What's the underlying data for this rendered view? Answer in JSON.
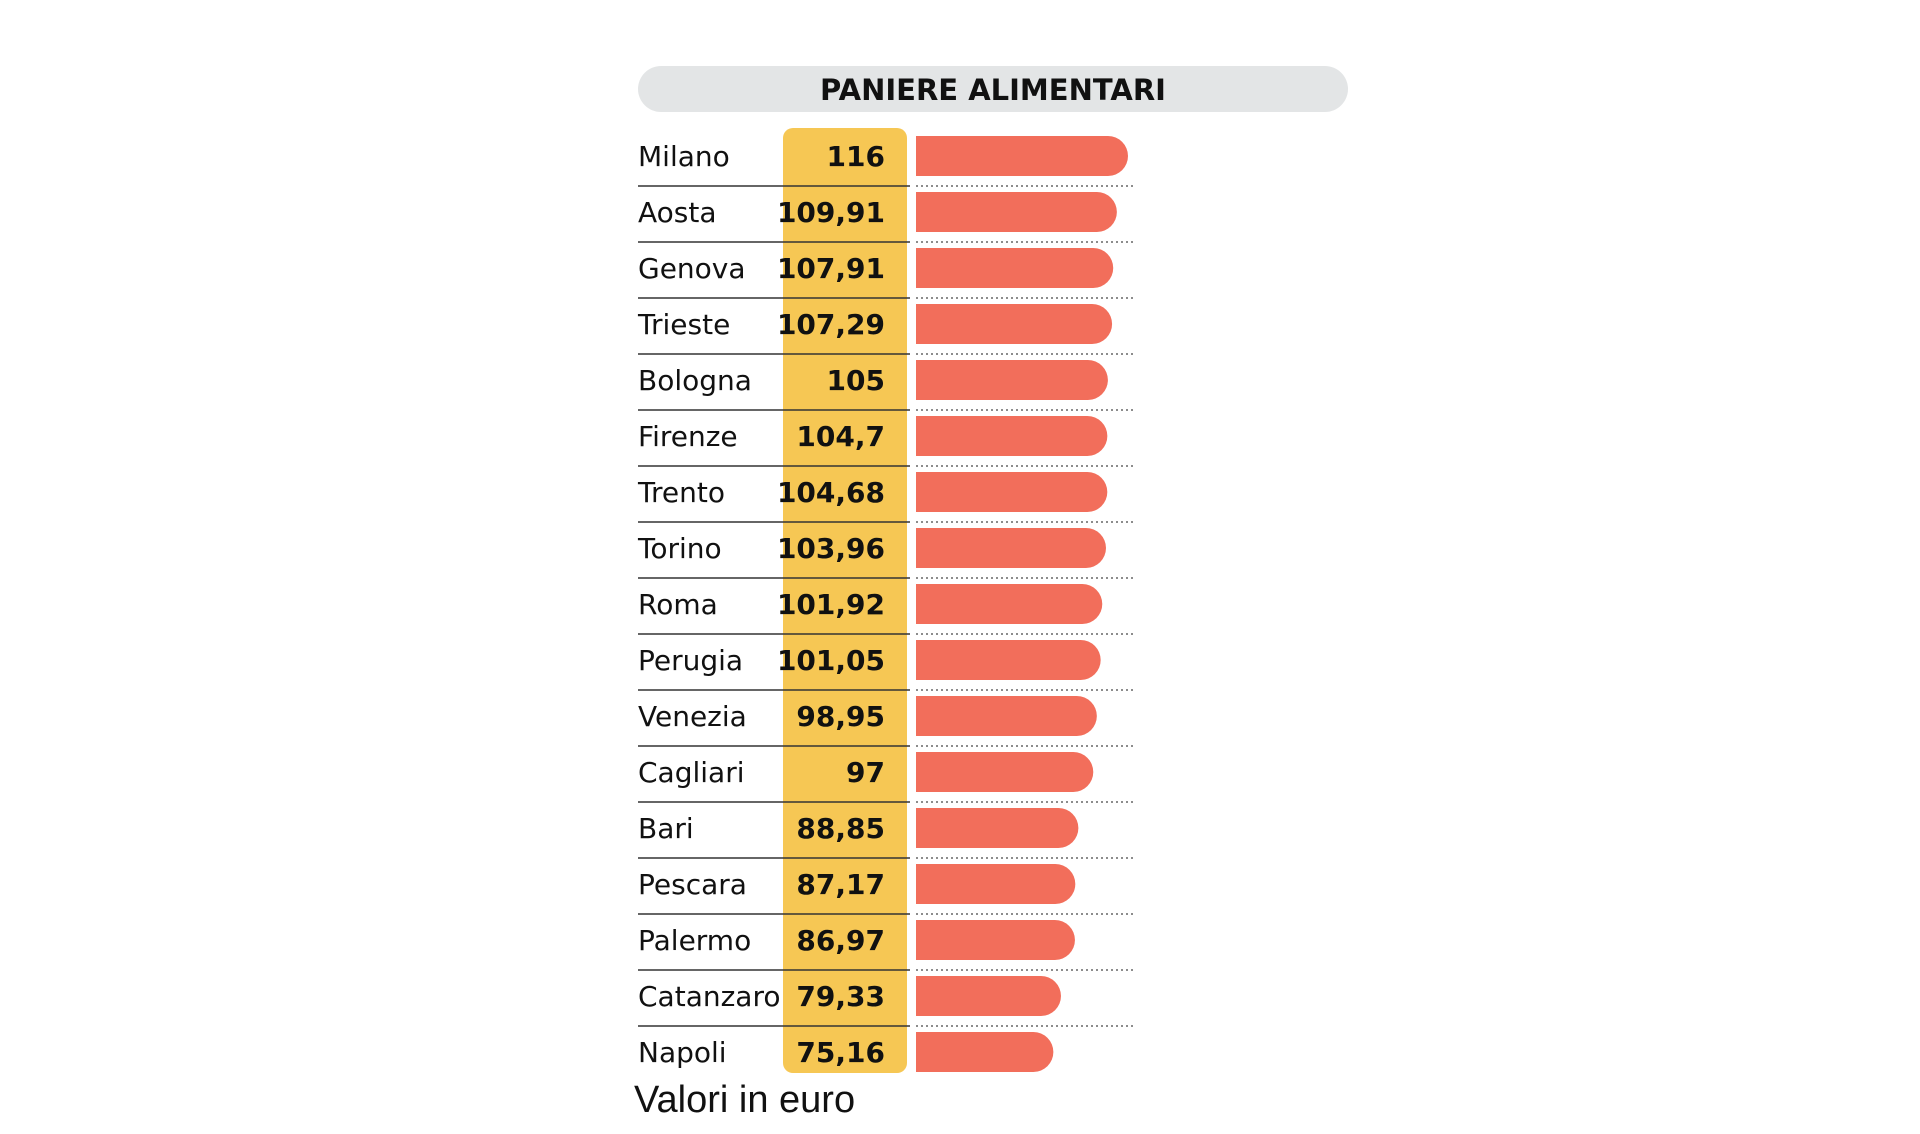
{
  "chart_data": {
    "type": "bar",
    "orientation": "horizontal",
    "title": "PANIERE ALIMENTARI",
    "note": "Valori in euro",
    "categories": [
      "Milano",
      "Aosta",
      "Genova",
      "Trieste",
      "Bologna",
      "Firenze",
      "Trento",
      "Torino",
      "Roma",
      "Perugia",
      "Venezia",
      "Cagliari",
      "Bari",
      "Pescara",
      "Palermo",
      "Catanzaro",
      "Napoli"
    ],
    "values": [
      116,
      109.91,
      107.91,
      107.29,
      105,
      104.7,
      104.68,
      103.96,
      101.92,
      101.05,
      98.95,
      97,
      88.85,
      87.17,
      86.97,
      79.33,
      75.16
    ],
    "value_labels": [
      "116",
      "109,91",
      "107,91",
      "107,29",
      "105",
      "104,7",
      "104,68",
      "103,96",
      "101,92",
      "101,05",
      "98,95",
      "97",
      "88,85",
      "87,17",
      "86,97",
      "79,33",
      "75,16"
    ],
    "colors": {
      "bar": "#f26e5b",
      "value_column": "#f6c754",
      "title_band": "#e3e5e6",
      "text": "#111111",
      "row_rule": "#333333",
      "dotted_rule": "#666666"
    }
  }
}
